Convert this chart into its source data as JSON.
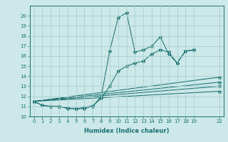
{
  "xlabel": "Humidex (Indice chaleur)",
  "ylabel": "",
  "bg_color": "#cce8e8",
  "line_color": "#1a7070",
  "grid_color": "#aacfcf",
  "xlim": [
    -0.5,
    22.5
  ],
  "ylim": [
    10,
    21
  ],
  "xticks": [
    0,
    1,
    2,
    3,
    4,
    5,
    6,
    7,
    8,
    9,
    10,
    11,
    12,
    13,
    14,
    15,
    16,
    17,
    18,
    19,
    22
  ],
  "yticks": [
    10,
    11,
    12,
    13,
    14,
    15,
    16,
    17,
    18,
    19,
    20
  ],
  "series": [
    {
      "x": [
        0,
        1,
        2,
        3,
        4,
        5,
        6,
        7,
        8,
        9,
        10,
        11,
        12,
        13,
        14,
        15,
        16,
        17,
        18,
        19
      ],
      "y": [
        11.5,
        11.1,
        11.0,
        11.0,
        10.8,
        10.75,
        10.8,
        11.0,
        12.0,
        16.5,
        19.8,
        20.3,
        16.4,
        16.6,
        17.0,
        17.9,
        16.2,
        15.3,
        16.5,
        16.6
      ]
    },
    {
      "x": [
        0,
        1,
        2,
        3,
        4,
        5,
        6,
        7,
        8,
        9,
        10,
        11,
        12,
        13,
        14,
        15,
        16,
        17,
        18,
        19
      ],
      "y": [
        11.5,
        11.1,
        11.0,
        11.0,
        10.85,
        10.75,
        10.9,
        11.05,
        11.8,
        13.0,
        14.5,
        15.0,
        15.3,
        15.5,
        16.2,
        16.6,
        16.4,
        15.3,
        16.5,
        16.6
      ]
    },
    {
      "x": [
        0,
        22
      ],
      "y": [
        11.5,
        13.9
      ]
    },
    {
      "x": [
        0,
        22
      ],
      "y": [
        11.5,
        13.4
      ]
    },
    {
      "x": [
        0,
        22
      ],
      "y": [
        11.5,
        13.0
      ]
    },
    {
      "x": [
        0,
        22
      ],
      "y": [
        11.5,
        12.5
      ]
    }
  ]
}
